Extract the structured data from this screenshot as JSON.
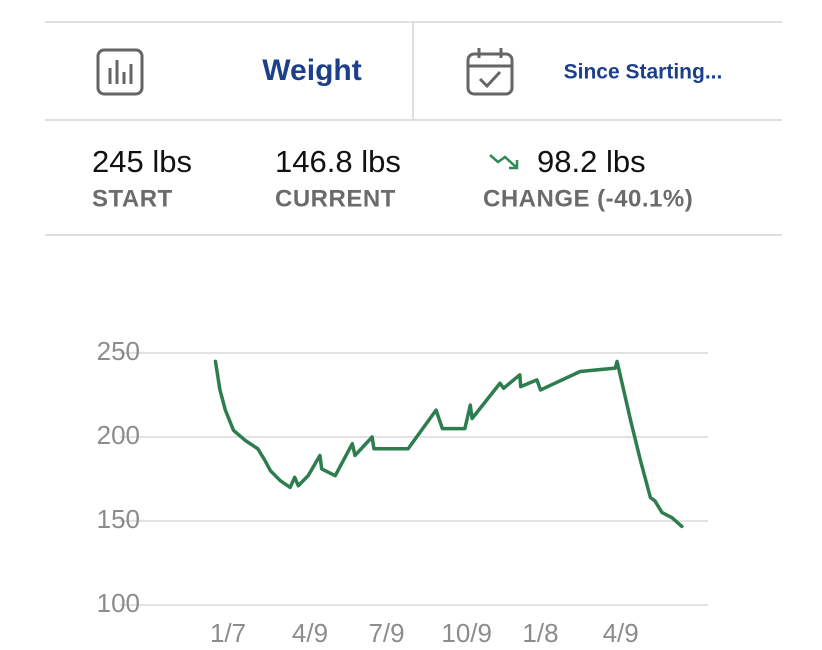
{
  "header": {
    "metric": "Weight",
    "range": "Since Starting..."
  },
  "stats": [
    {
      "value": "245 lbs",
      "label": "START"
    },
    {
      "value": "146.8 lbs",
      "label": "CURRENT"
    },
    {
      "value": "98.2 lbs",
      "label": "CHANGE (-40.1%)"
    }
  ],
  "chart_data": {
    "type": "line",
    "x": [
      -14,
      -9,
      -3,
      6,
      19,
      33,
      41,
      47,
      58,
      69,
      74,
      78,
      89,
      102,
      104,
      119,
      138,
      141,
      160,
      162,
      200,
      231,
      238,
      263,
      269,
      271,
      302,
      306,
      324,
      325,
      343,
      347,
      391,
      430,
      432,
      438,
      447,
      458,
      469,
      474,
      482,
      493,
      504
    ],
    "series": [
      {
        "name": "Weight",
        "color": "#2e7d4f",
        "values": [
          245,
          228,
          216,
          204,
          198,
          193,
          186,
          180,
          174,
          170,
          176,
          171,
          177,
          189,
          181,
          177,
          196,
          189,
          200,
          193,
          193,
          216,
          205,
          205,
          219,
          211,
          232,
          229,
          237,
          230,
          234,
          228,
          239,
          241,
          245,
          231,
          210,
          186,
          164,
          162,
          155,
          152,
          146.8
        ]
      }
    ],
    "xlim": [
      -120,
      533
    ],
    "xticks": [
      {
        "value": 0,
        "label": "1/7"
      },
      {
        "value": 91,
        "label": "4/9"
      },
      {
        "value": 176,
        "label": "7/9"
      },
      {
        "value": 265,
        "label": "10/9"
      },
      {
        "value": 347,
        "label": "1/8"
      },
      {
        "value": 436,
        "label": "4/9"
      }
    ],
    "ylim": [
      100,
      250
    ],
    "yticks": [
      100,
      150,
      200,
      250
    ],
    "grid": true
  }
}
